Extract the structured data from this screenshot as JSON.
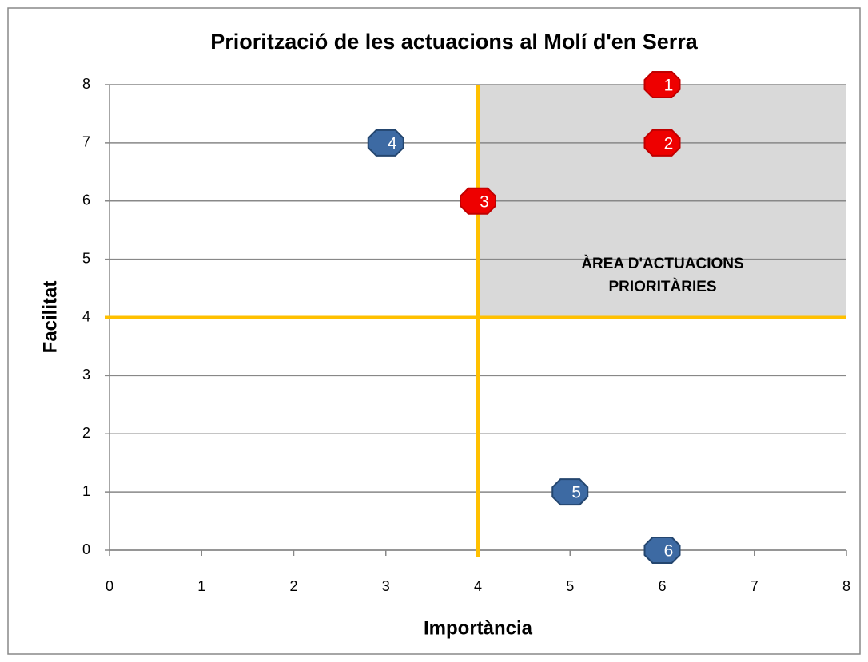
{
  "chart_data": {
    "type": "scatter",
    "title": "Priorització de les actuacions al Molí d'en Serra",
    "xlabel": "Importància",
    "ylabel": "Facilitat",
    "x": [
      6,
      6,
      4,
      3,
      5,
      6
    ],
    "values": [
      8,
      7,
      6,
      7,
      1,
      0
    ],
    "point_labels": [
      "1",
      "2",
      "3",
      "4",
      "5",
      "6"
    ],
    "colors": [
      "#ee0000",
      "#ee0000",
      "#ee0000",
      "#3d6aa3",
      "#3d6aa3",
      "#3d6aa3"
    ],
    "xlim": [
      0,
      8
    ],
    "ylim": [
      0,
      8
    ],
    "xticks": [
      0,
      1,
      2,
      3,
      4,
      5,
      6,
      7,
      8
    ],
    "yticks": [
      0,
      1,
      2,
      3,
      4,
      5,
      6,
      7,
      8
    ],
    "grid": true,
    "threshold_x": 4,
    "threshold_y": 4,
    "threshold_color": "#ffc000",
    "area_color": "#d9d9d9",
    "annotation": [
      "ÀREA D'ACTUACIONS",
      "PRIORITÀRIES"
    ]
  }
}
